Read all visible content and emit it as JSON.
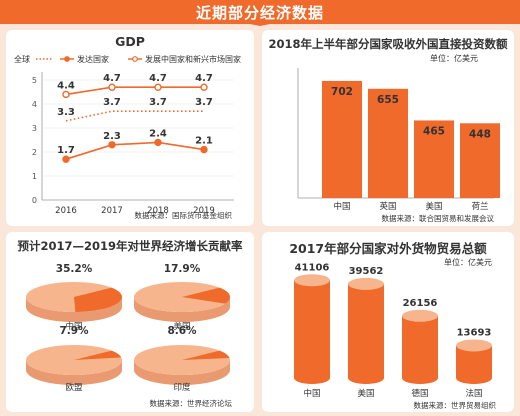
{
  "header": {
    "title": "近期部分经济数据"
  },
  "colors": {
    "accent": "#ef6a2b",
    "accent_light": "#f6b58d",
    "panel_bg": "#ffffff",
    "page_bg": "#fbe6da"
  },
  "gdp": {
    "title": "GDP",
    "source": "数据来源：国际货币基金组织",
    "chart_data": {
      "type": "line",
      "title": "GDP",
      "x": [
        "2016",
        "2017",
        "2018",
        "2019"
      ],
      "ylim": [
        0,
        5
      ],
      "yticks": [
        "0",
        "1",
        "2",
        "3",
        "4",
        "5"
      ],
      "series": [
        {
          "name": "全球",
          "values": [
            3.3,
            3.7,
            3.7,
            3.7
          ]
        },
        {
          "name": "发达国家",
          "values": [
            1.7,
            2.3,
            2.4,
            2.1
          ]
        },
        {
          "name": "发展中国家和新兴市场国家",
          "values": [
            4.4,
            4.7,
            4.7,
            4.7
          ]
        }
      ],
      "value_labels": [
        [
          "3.3",
          "3.7",
          "3.7",
          "3.7"
        ],
        [
          "1.7",
          "2.3",
          "2.4",
          "2.1"
        ],
        [
          "4.4",
          "4.7",
          "4.7",
          "4.7"
        ]
      ]
    }
  },
  "fdi": {
    "title": "2018年上半年部分国家吸收外国直接投资数额",
    "unit": "单位：亿美元",
    "source": "数据来源：联合国贸易和发展会议",
    "chart_data": {
      "type": "bar",
      "title": "2018年上半年部分国家吸收外国直接投资数额",
      "categories": [
        "中国",
        "英国",
        "美国",
        "荷兰"
      ],
      "values": [
        702,
        655,
        465,
        448
      ],
      "ylim": [
        0,
        800
      ]
    }
  },
  "contrib": {
    "title": "预计2017—2019年对世界经济增长贡献率",
    "source": "数据来源：世界经济论坛",
    "chart_data": {
      "type": "pie",
      "title": "预计2017—2019年对世界经济增长贡献率",
      "categories": [
        "中国",
        "美国",
        "欧盟",
        "印度"
      ],
      "values": [
        35.2,
        17.9,
        7.9,
        8.6
      ],
      "labels": [
        "35.2%",
        "17.9%",
        "7.9%",
        "8.6%"
      ]
    }
  },
  "trade": {
    "title": "2017年部分国家对外货物贸易总额",
    "unit": "单位：亿美元",
    "source": "数据来源：世界贸易组织",
    "chart_data": {
      "type": "bar",
      "title": "2017年部分国家对外货物贸易总额",
      "categories": [
        "中国",
        "美国",
        "德国",
        "法国"
      ],
      "values": [
        41106,
        39562,
        26156,
        13693
      ]
    }
  }
}
